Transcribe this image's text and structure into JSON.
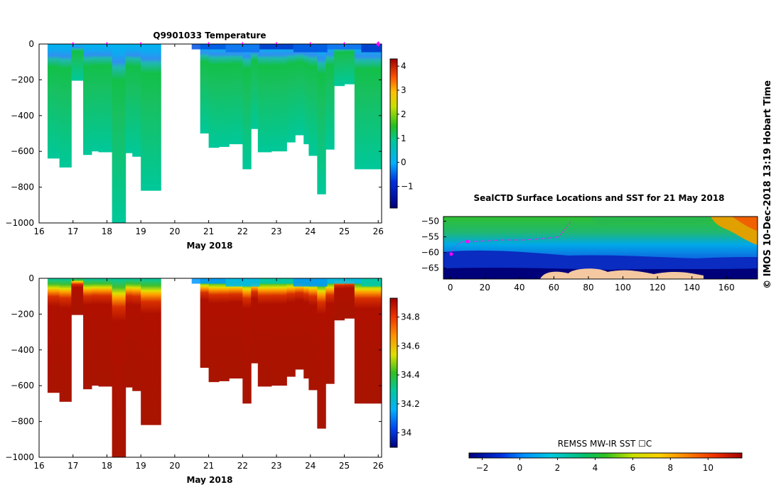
{
  "chart_data": [
    {
      "type": "heatmap",
      "id": "temperature",
      "title": "Q9901033  Temperature",
      "xlabel": "May 2018",
      "xlim": [
        16,
        26.1
      ],
      "ylim": [
        -1000,
        0
      ],
      "xticks": [
        16,
        17,
        18,
        19,
        20,
        21,
        22,
        23,
        24,
        25,
        26
      ],
      "yticks": [
        0,
        -200,
        -400,
        -600,
        -800,
        -1000
      ],
      "ytick_labels": [
        "0",
        "−200",
        "−400",
        "−600",
        "−800",
        "−1000"
      ],
      "profile_markers_day": [
        17.0,
        18.0,
        19.0,
        21.0,
        22.0,
        23.0,
        24.0,
        25.0,
        26.0
      ],
      "colorbar": {
        "ticks": [
          4,
          3,
          2,
          1,
          0,
          -1
        ],
        "labels": [
          "4",
          "3",
          "2",
          "1",
          "0",
          "−1"
        ],
        "range": [
          -1.9,
          4.3
        ]
      },
      "gap_days": [
        19.6,
        20.5
      ],
      "profile_max_depths": [
        {
          "day": 16.2,
          "depth": 640
        },
        {
          "day": 16.6,
          "depth": 690
        },
        {
          "day": 16.95,
          "depth": 205
        },
        {
          "day": 17.3,
          "depth": 620
        },
        {
          "day": 17.55,
          "depth": 600
        },
        {
          "day": 17.75,
          "depth": 605
        },
        {
          "day": 18.15,
          "depth": 1000
        },
        {
          "day": 18.55,
          "depth": 610
        },
        {
          "day": 18.75,
          "depth": 630
        },
        {
          "day": 19.0,
          "depth": 820
        },
        {
          "day": 20.75,
          "depth": 500
        },
        {
          "day": 21.0,
          "depth": 580
        },
        {
          "day": 21.3,
          "depth": 575
        },
        {
          "day": 21.6,
          "depth": 560
        },
        {
          "day": 22.0,
          "depth": 700
        },
        {
          "day": 22.25,
          "depth": 475
        },
        {
          "day": 22.45,
          "depth": 605
        },
        {
          "day": 22.85,
          "depth": 600
        },
        {
          "day": 23.3,
          "depth": 550
        },
        {
          "day": 23.55,
          "depth": 510
        },
        {
          "day": 23.8,
          "depth": 560
        },
        {
          "day": 23.95,
          "depth": 625
        },
        {
          "day": 24.2,
          "depth": 840
        },
        {
          "day": 24.45,
          "depth": 590
        },
        {
          "day": 24.7,
          "depth": 235
        },
        {
          "day": 25.0,
          "depth": 225
        },
        {
          "day": 25.3,
          "depth": 700
        },
        {
          "day": 25.75,
          "depth": 700
        },
        {
          "day": 26.1,
          "depth": 700
        }
      ]
    },
    {
      "type": "heatmap",
      "id": "salinity",
      "title": "",
      "xlabel": "May 2018",
      "xlim": [
        16,
        26.1
      ],
      "ylim": [
        -1000,
        0
      ],
      "xticks": [
        16,
        17,
        18,
        19,
        20,
        21,
        22,
        23,
        24,
        25,
        26
      ],
      "yticks": [
        0,
        -200,
        -400,
        -600,
        -800,
        -1000
      ],
      "ytick_labels": [
        "0",
        "−200",
        "−400",
        "−600",
        "−800",
        "−1000"
      ],
      "colorbar": {
        "ticks": [
          34.8,
          34.6,
          34.4,
          34.2,
          34.0
        ],
        "labels": [
          "34.8",
          "34.6",
          "34.4",
          "34.2",
          "34"
        ],
        "range": [
          33.9,
          34.93
        ]
      },
      "gap_days": [
        19.6,
        20.5
      ]
    },
    {
      "type": "heatmap",
      "id": "sst-map",
      "title": "SealCTD Surface Locations and SST for 21 May 2018",
      "xlim": [
        -4,
        178
      ],
      "ylim": [
        -68.5,
        -48.5
      ],
      "xticks": [
        0,
        20,
        40,
        60,
        80,
        100,
        120,
        140,
        160
      ],
      "yticks": [
        -50,
        -55,
        -60,
        -65
      ],
      "ytick_labels": [
        "−50",
        "−55",
        "−60",
        "−65"
      ],
      "track": [
        {
          "lon": 0.5,
          "lat": -60.5
        },
        {
          "lon": 2,
          "lat": -58.5
        },
        {
          "lon": 5,
          "lat": -57
        },
        {
          "lon": 8,
          "lat": -56.5
        },
        {
          "lon": 12,
          "lat": -56.5
        },
        {
          "lon": 20,
          "lat": -56.3
        },
        {
          "lon": 30,
          "lat": -56
        },
        {
          "lon": 42,
          "lat": -56
        },
        {
          "lon": 55,
          "lat": -55.5
        },
        {
          "lon": 63,
          "lat": -55
        },
        {
          "lon": 67,
          "lat": -52
        },
        {
          "lon": 70,
          "lat": -50
        }
      ],
      "track_points": [
        {
          "lon": 0.5,
          "lat": -60.5
        },
        {
          "lon": 10,
          "lat": -56.5
        }
      ],
      "colorbar": {
        "label": "REMSS MW-IR SST ☐C",
        "ticks": [
          -2,
          0,
          2,
          4,
          6,
          8,
          10
        ],
        "labels": [
          "−2",
          "0",
          "2",
          "4",
          "6",
          "8",
          "10"
        ],
        "range": [
          -2.7,
          11.8
        ]
      }
    }
  ],
  "credit": "©  IMOS 10-Dec-2018 13:19 Hobart Time"
}
